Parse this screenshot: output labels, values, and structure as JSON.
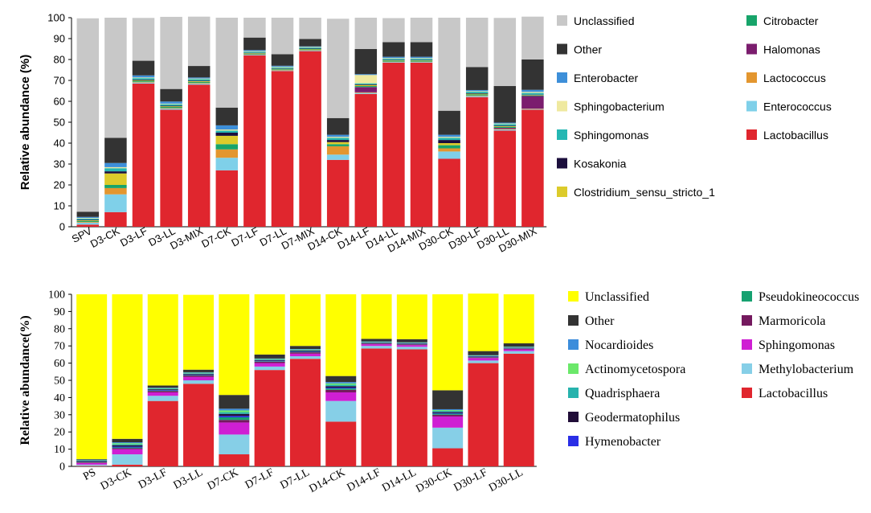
{
  "chart_data": [
    {
      "type": "bar",
      "stacked": true,
      "ylabel": "Relative abundance (%)",
      "ylim": [
        0,
        100
      ],
      "yticks": [
        0,
        10,
        20,
        30,
        40,
        50,
        60,
        70,
        80,
        90,
        100
      ],
      "categories": [
        "SPV",
        "D3-CK",
        "D3-LF",
        "D3-LL",
        "D3-MIX",
        "D7-CK",
        "D7-LF",
        "D7-LL",
        "D7-MIX",
        "D14-CK",
        "D14-LF",
        "D14-LL",
        "D14-MIX",
        "D30-CK",
        "D30-LF",
        "D30-LL",
        "D30-MIX"
      ],
      "legend_order": [
        "Unclassified",
        "Other",
        "Enterobacter",
        "Sphingobacterium",
        "Sphingomonas",
        "Kosakonia",
        "Clostridium_sensu_stricto_1",
        "Citrobacter",
        "Halomonas",
        "Lactococcus",
        "Enterococcus",
        "Lactobacillus"
      ],
      "series": [
        {
          "name": "Lactobacillus",
          "color": "#e0262e",
          "values": [
            1,
            7,
            68.5,
            56,
            68,
            27,
            82,
            74.5,
            84,
            32,
            63.5,
            78.5,
            78.5,
            32.5,
            62,
            46,
            56
          ]
        },
        {
          "name": "Enterococcus",
          "color": "#7fd0e9",
          "values": [
            1,
            8.5,
            0.5,
            0.5,
            0.5,
            6,
            0.3,
            0.3,
            0.3,
            2.5,
            0.5,
            0.3,
            0.3,
            3.5,
            0.5,
            0.5,
            0.3
          ]
        },
        {
          "name": "Lactococcus",
          "color": "#e3962f",
          "values": [
            0.3,
            3,
            0.3,
            0.3,
            0.3,
            4,
            0.2,
            0.2,
            0.2,
            4,
            0.3,
            0.2,
            0.2,
            1.5,
            0.3,
            0.3,
            0.2
          ]
        },
        {
          "name": "Halomonas",
          "color": "#7b1d6e",
          "values": [
            0,
            0,
            0,
            0,
            0,
            0,
            0,
            0,
            0,
            0,
            2.5,
            0,
            0,
            0,
            0,
            0.5,
            6
          ]
        },
        {
          "name": "Citrobacter",
          "color": "#17a46a",
          "values": [
            0.5,
            1.5,
            0.5,
            0.5,
            0.5,
            2.5,
            0.3,
            0.3,
            0.3,
            1,
            0.5,
            0.5,
            0.5,
            1.5,
            0.5,
            0.5,
            0.3
          ]
        },
        {
          "name": "Clostridium_sensu_stricto_1",
          "color": "#dccb2b",
          "values": [
            0.3,
            5.5,
            0.3,
            0.3,
            0.3,
            4,
            0.2,
            0.2,
            0.2,
            1,
            0.5,
            0.2,
            0.2,
            1,
            0.3,
            0.3,
            0.2
          ]
        },
        {
          "name": "Kosakonia",
          "color": "#1c0f3d",
          "values": [
            0.3,
            1,
            0.3,
            0.3,
            0.3,
            1.5,
            0.2,
            0.2,
            0.2,
            1,
            0.3,
            0.2,
            0.2,
            1.5,
            0.3,
            0.3,
            0.2
          ]
        },
        {
          "name": "Sphingomonas",
          "color": "#25b7b3",
          "values": [
            0.5,
            1.5,
            0.7,
            0.7,
            0.7,
            1,
            0.5,
            0.5,
            0.5,
            1,
            0.5,
            0.5,
            0.5,
            1,
            0.7,
            0.7,
            0.8
          ]
        },
        {
          "name": "Sphingobacterium",
          "color": "#efe99f",
          "values": [
            0.3,
            0.5,
            0.3,
            0.3,
            0.3,
            0.5,
            0.3,
            0.3,
            0.3,
            0.5,
            4,
            0.3,
            0.3,
            0.5,
            0.3,
            0.3,
            0.5
          ]
        },
        {
          "name": "Enterobacter",
          "color": "#3d8fd9",
          "values": [
            0.5,
            2,
            1,
            1,
            0.5,
            2,
            0.5,
            0.5,
            0.3,
            1,
            0.4,
            0.6,
            0.6,
            1,
            0.5,
            0.4,
            1
          ]
        },
        {
          "name": "Other",
          "color": "#333333",
          "values": [
            2.5,
            12,
            7,
            6,
            5.5,
            8.5,
            6,
            5.5,
            3.5,
            8,
            12,
            7,
            7,
            11.5,
            11,
            17.5,
            14.5
          ]
        },
        {
          "name": "Unclassified",
          "color": "#c8c8c8",
          "values": [
            92.5,
            57.5,
            20.5,
            34.5,
            23.6,
            43,
            9.5,
            17.5,
            10.2,
            47.5,
            15,
            11.5,
            11.7,
            44.5,
            23.6,
            32.6,
            20.5
          ]
        }
      ]
    },
    {
      "type": "bar",
      "stacked": true,
      "ylabel": "Relative abundance(%)",
      "ylim": [
        0,
        100
      ],
      "yticks": [
        0,
        10,
        20,
        30,
        40,
        50,
        60,
        70,
        80,
        90,
        100
      ],
      "categories": [
        "PS",
        "D3-CK",
        "D3-LF",
        "D3-LL",
        "D7-CK",
        "D7-LF",
        "D7-LL",
        "D14-CK",
        "D14-LF",
        "D14-LL",
        "D30-CK",
        "D30-LF",
        "D30-LL"
      ],
      "legend_order": [
        "Unclassified",
        "Other",
        "Nocardioides",
        "Actinomycetospora",
        "Quadrisphaera",
        "Geodermatophilus",
        "Hymenobacter",
        "Pseudokineococcus",
        "Marmoricola",
        "Sphingomonas",
        "Methylobacterium",
        "Lactobacillus"
      ],
      "series": [
        {
          "name": "Lactobacillus",
          "color": "#e0262e",
          "values": [
            0.3,
            1,
            38,
            48,
            7,
            56,
            62.5,
            26,
            68.5,
            68,
            10.5,
            60,
            65.5
          ]
        },
        {
          "name": "Methylobacterium",
          "color": "#86cfe7",
          "values": [
            0.7,
            6,
            3,
            2,
            11.5,
            2,
            1.5,
            12,
            1.5,
            1.5,
            12,
            1.5,
            1.5
          ]
        },
        {
          "name": "Sphingomonas",
          "color": "#cf1fd3",
          "values": [
            1,
            3,
            2,
            2,
            7,
            2,
            1.5,
            5,
            1,
            1,
            6.5,
            1.5,
            1
          ]
        },
        {
          "name": "Marmoricola",
          "color": "#74195e",
          "values": [
            0.5,
            0.5,
            0.8,
            0.8,
            1.5,
            0.8,
            0.8,
            1.5,
            0.4,
            0.4,
            1,
            0.4,
            0.4
          ]
        },
        {
          "name": "Pseudokineococcus",
          "color": "#16a170",
          "values": [
            0.3,
            0.5,
            0.3,
            0.3,
            1.5,
            0.3,
            0.3,
            0.8,
            0.2,
            0.2,
            0.6,
            0.2,
            0.2
          ]
        },
        {
          "name": "Hymenobacter",
          "color": "#2a2ee6",
          "values": [
            0.2,
            0.5,
            0.3,
            0.3,
            0.8,
            0.3,
            0.3,
            0.5,
            0.2,
            0.2,
            0.4,
            0.2,
            0.2
          ]
        },
        {
          "name": "Geodermatophilus",
          "color": "#200d38",
          "values": [
            0.3,
            0.8,
            0.4,
            0.4,
            1.2,
            0.4,
            0.4,
            0.8,
            0.2,
            0.2,
            0.6,
            0.2,
            0.2
          ]
        },
        {
          "name": "Quadrisphaera",
          "color": "#27b3ad",
          "values": [
            0.2,
            0.6,
            0.3,
            0.3,
            1,
            0.3,
            0.3,
            0.8,
            0.2,
            0.2,
            0.6,
            0.2,
            0.2
          ]
        },
        {
          "name": "Actinomycetospora",
          "color": "#6be86a",
          "values": [
            0.2,
            0.6,
            0.3,
            0.3,
            1,
            0.3,
            0.3,
            0.8,
            0.2,
            0.2,
            0.5,
            0.2,
            0.2
          ]
        },
        {
          "name": "Nocardioides",
          "color": "#3c8ddb",
          "values": [
            0.2,
            0.5,
            0.3,
            0.3,
            1,
            0.3,
            0.3,
            0.8,
            0.2,
            0.2,
            0.5,
            0.2,
            0.2
          ]
        },
        {
          "name": "Other",
          "color": "#333333",
          "values": [
            0.3,
            2,
            1.3,
            1.5,
            8,
            2.3,
            1.8,
            3.5,
            1.5,
            1.8,
            11,
            2.4,
            1.9
          ]
        },
        {
          "name": "Unclassified",
          "color": "#ffff00",
          "values": [
            95.8,
            84,
            53,
            43.5,
            58.5,
            35,
            30,
            47.5,
            25.9,
            26,
            55.8,
            33.4,
            28.5
          ]
        }
      ]
    }
  ]
}
